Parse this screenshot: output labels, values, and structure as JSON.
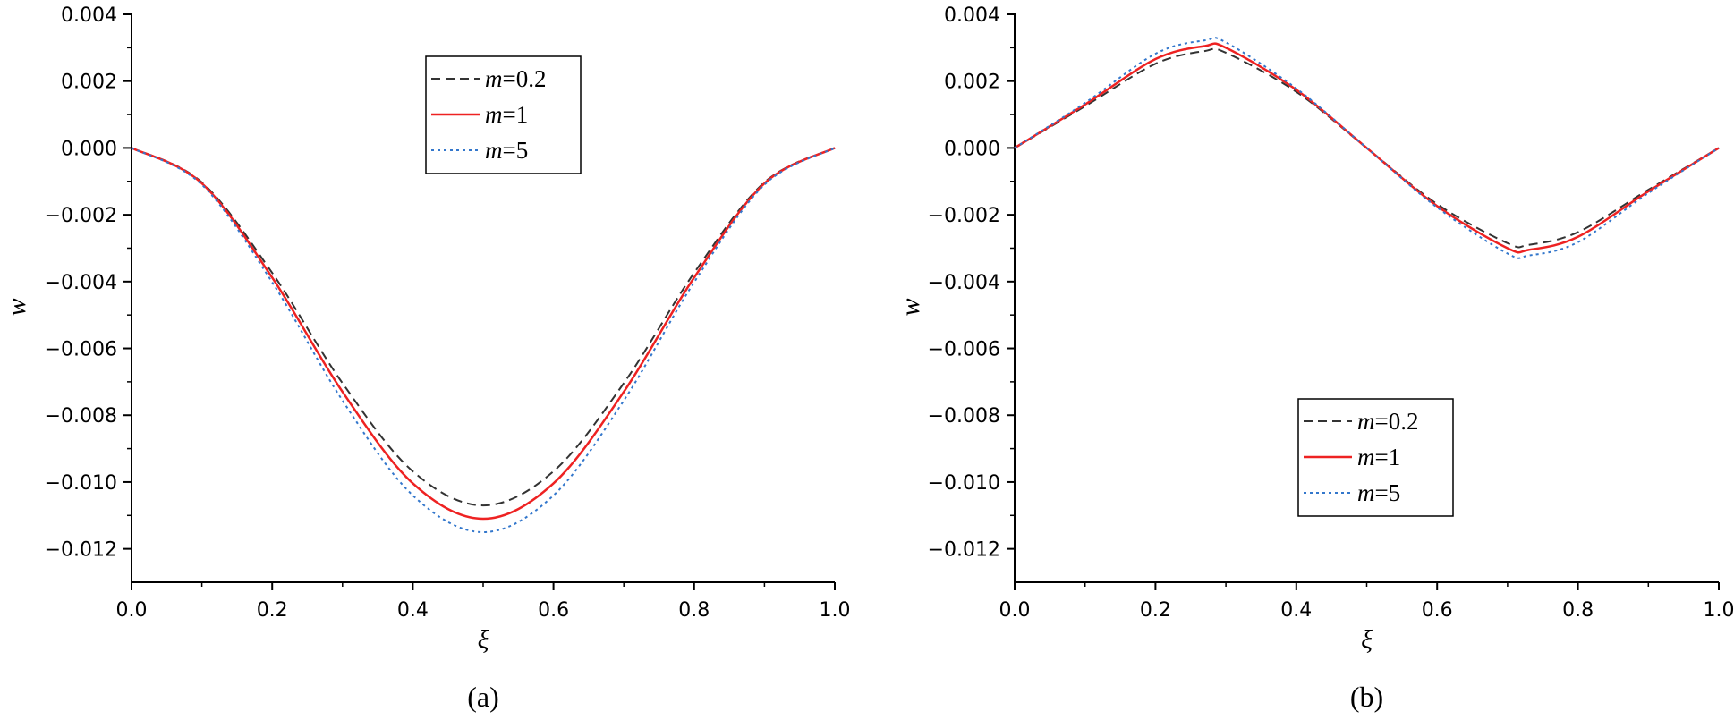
{
  "chart_data": [
    {
      "type": "line",
      "panel_label": "(a)",
      "xlabel": "ξ",
      "ylabel": "w",
      "xlim": [
        0.0,
        1.0
      ],
      "ylim": [
        -0.013,
        0.004
      ],
      "xticks": [
        0.0,
        0.2,
        0.4,
        0.6,
        0.8,
        1.0
      ],
      "xtick_labels": [
        "0.0",
        "0.2",
        "0.4",
        "0.6",
        "0.8",
        "1.0"
      ],
      "yticks": [
        0.004,
        0.002,
        0.0,
        -0.002,
        -0.004,
        -0.006,
        -0.008,
        -0.01,
        -0.012
      ],
      "ytick_labels": [
        "0.004",
        "0.002",
        "0.000",
        "−0.002",
        "−0.004",
        "−0.006",
        "−0.008",
        "−0.010",
        "−0.012"
      ],
      "legend_position": "upper-center",
      "series": [
        {
          "name": "m=0.2",
          "var": "m",
          "eq": "=0.2",
          "color": "#333333",
          "style": "dashed",
          "x": [
            0,
            0.1,
            0.2,
            0.3,
            0.4,
            0.5,
            0.6,
            0.7,
            0.8,
            0.9,
            1.0
          ],
          "y": [
            0,
            -0.00103,
            -0.00374,
            -0.00704,
            -0.00968,
            -0.0107,
            -0.00968,
            -0.00704,
            -0.00374,
            -0.00103,
            0
          ]
        },
        {
          "name": "m=1",
          "var": "m",
          "eq": "=1",
          "color": "#ee2222",
          "style": "solid",
          "x": [
            0,
            0.1,
            0.2,
            0.3,
            0.4,
            0.5,
            0.6,
            0.7,
            0.8,
            0.9,
            1.0
          ],
          "y": [
            0,
            -0.00106,
            -0.00388,
            -0.0073,
            -0.01004,
            -0.0111,
            -0.01004,
            -0.0073,
            -0.00388,
            -0.00106,
            0
          ]
        },
        {
          "name": "m=5",
          "var": "m",
          "eq": "=5",
          "color": "#3377cc",
          "style": "dotted",
          "x": [
            0,
            0.1,
            0.2,
            0.3,
            0.4,
            0.5,
            0.6,
            0.7,
            0.8,
            0.9,
            1.0
          ],
          "y": [
            0,
            -0.0011,
            -0.00402,
            -0.00756,
            -0.0104,
            -0.0115,
            -0.0104,
            -0.00756,
            -0.00402,
            -0.0011,
            0
          ]
        }
      ]
    },
    {
      "type": "line",
      "panel_label": "(b)",
      "xlabel": "ξ",
      "ylabel": "w",
      "xlim": [
        0.0,
        1.0
      ],
      "ylim": [
        -0.013,
        0.004
      ],
      "xticks": [
        0.0,
        0.2,
        0.4,
        0.6,
        0.8,
        1.0
      ],
      "xtick_labels": [
        "0.0",
        "0.2",
        "0.4",
        "0.6",
        "0.8",
        "1.0"
      ],
      "yticks": [
        0.004,
        0.002,
        0.0,
        -0.002,
        -0.004,
        -0.006,
        -0.008,
        -0.01,
        -0.012
      ],
      "ytick_labels": [
        "0.004",
        "0.002",
        "0.000",
        "−0.002",
        "−0.004",
        "−0.006",
        "−0.008",
        "−0.010",
        "−0.012"
      ],
      "legend_position": "lower-center",
      "series": [
        {
          "name": "m=0.2",
          "var": "m",
          "eq": "=0.2",
          "color": "#333333",
          "style": "dashed",
          "x": [
            0,
            0.1,
            0.2,
            0.27,
            0.3,
            0.4,
            0.5,
            0.6,
            0.7,
            0.73,
            0.8,
            0.9,
            1.0
          ],
          "y": [
            0,
            0.00125,
            0.00252,
            0.0029,
            0.00285,
            0.00168,
            0,
            -0.00168,
            -0.00285,
            -0.0029,
            -0.00252,
            -0.00125,
            0
          ]
        },
        {
          "name": "m=1",
          "var": "m",
          "eq": "=1",
          "color": "#ee2222",
          "style": "solid",
          "x": [
            0,
            0.1,
            0.2,
            0.27,
            0.3,
            0.4,
            0.5,
            0.6,
            0.7,
            0.73,
            0.8,
            0.9,
            1.0
          ],
          "y": [
            0,
            0.0013,
            0.00266,
            0.00305,
            0.003,
            0.00174,
            0,
            -0.00174,
            -0.003,
            -0.00305,
            -0.00266,
            -0.0013,
            0
          ]
        },
        {
          "name": "m=5",
          "var": "m",
          "eq": "=5",
          "color": "#3377cc",
          "style": "dotted",
          "x": [
            0,
            0.1,
            0.2,
            0.27,
            0.3,
            0.4,
            0.5,
            0.6,
            0.7,
            0.73,
            0.8,
            0.9,
            1.0
          ],
          "y": [
            0,
            0.00135,
            0.00282,
            0.00322,
            0.00316,
            0.00178,
            0,
            -0.00178,
            -0.00316,
            -0.00322,
            -0.00282,
            -0.00135,
            0
          ]
        }
      ]
    }
  ]
}
